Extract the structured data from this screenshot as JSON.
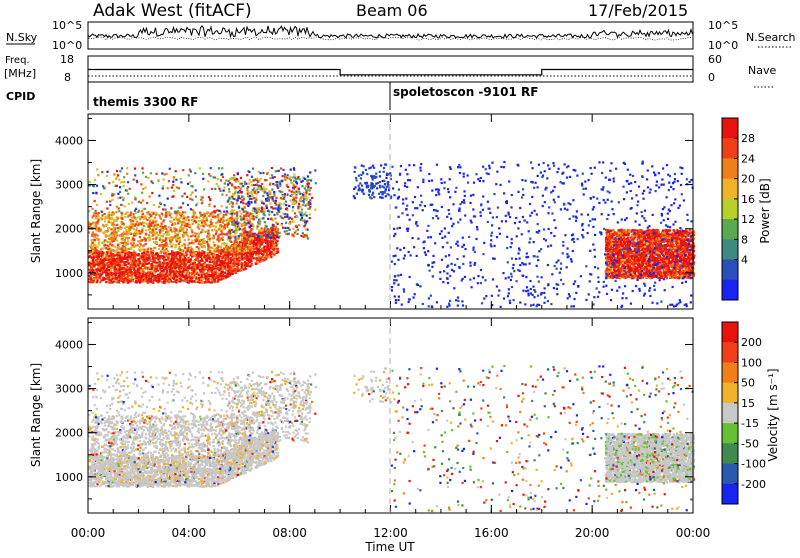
{
  "header": {
    "radar": "Adak West (fitACF)",
    "beam": "Beam 06",
    "date": "17/Feb/2015"
  },
  "strip_nsky": {
    "left_label": "N.Sky",
    "ticks": [
      "10^5",
      "10^0"
    ],
    "right_ticks": [
      "10^5",
      "10^0"
    ],
    "right_label": "N.Search"
  },
  "strip_freq": {
    "left_label_1": "Freq.",
    "left_label_2": "[MHz]",
    "ticks": [
      "18",
      "8"
    ],
    "right_ticks": [
      "60",
      "0"
    ],
    "right_label": "Nave"
  },
  "strip_cpid": {
    "label": "CPID",
    "mode_1": "themis 3300 RF",
    "mode_2": "spoletoscon -9101 RF"
  },
  "chart_data": [
    {
      "type": "heatmap",
      "name": "power",
      "ylabel": "Slant Range [km]",
      "xlabel": "",
      "ylim": [
        180,
        4600
      ],
      "yticks": [
        "1000",
        "2000",
        "3000",
        "4000"
      ],
      "colorbar": {
        "label": "Power [dB]",
        "ticks": [
          "28",
          "24",
          "20",
          "16",
          "12",
          "8",
          "4"
        ],
        "range": [
          0,
          32
        ],
        "colors": [
          "#1a24f2",
          "#2a4fb8",
          "#3f8a80",
          "#5aa84f",
          "#b8cf2a",
          "#f0b22a",
          "#f07f1a",
          "#ef3f16",
          "#e8120f"
        ]
      },
      "echo_regions": [
        {
          "x_hours": [
            0.0,
            7.5
          ],
          "range_km": [
            800,
            1500
          ],
          "level": "strong"
        },
        {
          "x_hours": [
            0.0,
            6.5
          ],
          "range_km": [
            1500,
            2400
          ],
          "level": "medium"
        },
        {
          "x_hours": [
            5.5,
            8.8
          ],
          "range_km": [
            1800,
            3200
          ],
          "level": "mixed"
        },
        {
          "x_hours": [
            10.5,
            12.0
          ],
          "range_km": [
            2700,
            3500
          ],
          "level": "weak"
        },
        {
          "x_hours": [
            20.5,
            24.0
          ],
          "range_km": [
            900,
            2000
          ],
          "level": "strong"
        }
      ]
    },
    {
      "type": "heatmap",
      "name": "velocity",
      "ylabel": "Slant Range [km]",
      "xlabel": "Time UT",
      "ylim": [
        180,
        4600
      ],
      "yticks": [
        "1000",
        "2000",
        "3000",
        "4000"
      ],
      "xticks": [
        "00:00",
        "04:00",
        "08:00",
        "12:00",
        "16:00",
        "20:00",
        "00:00"
      ],
      "colorbar": {
        "label": "Velocity [m s^-1]",
        "ticks": [
          "200",
          "100",
          "50",
          "15",
          "-15",
          "-50",
          "-100",
          "-200"
        ],
        "colors": [
          "#1a24f2",
          "#2a5ab0",
          "#3f8a4f",
          "#66c033",
          "#c8c8c8",
          "#f0b22a",
          "#f07f1a",
          "#ef3f16",
          "#e8120f"
        ]
      }
    }
  ]
}
